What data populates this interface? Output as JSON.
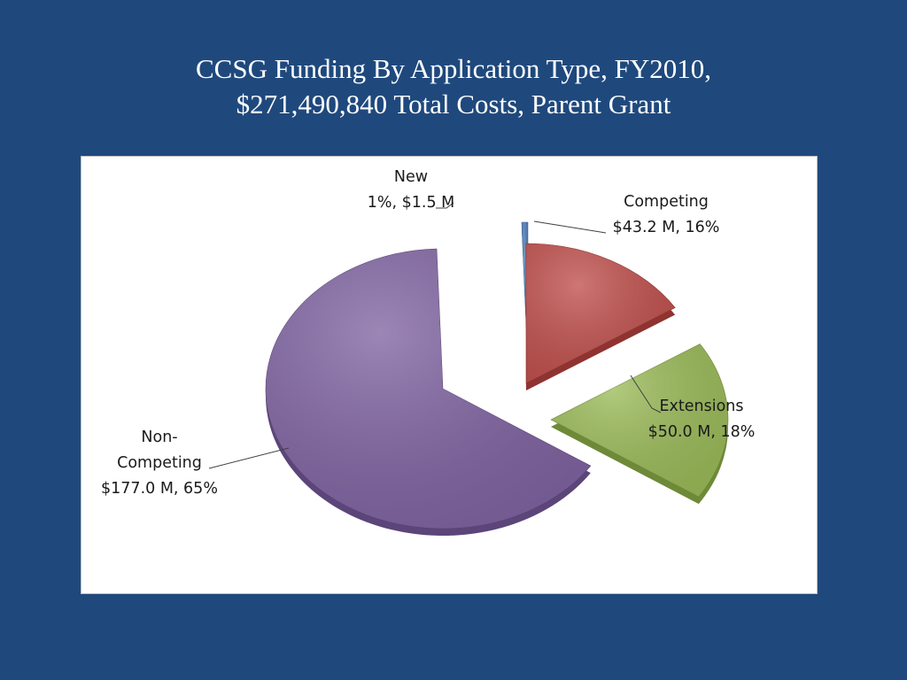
{
  "slide": {
    "title_line1": "CCSG Funding By Application Type, FY2010,",
    "title_line2": "$271,490,840 Total Costs, Parent Grant"
  },
  "chart_data": {
    "type": "pie",
    "style": "3d-exploded",
    "start_angle_deg": 92,
    "slices": [
      {
        "key": "new",
        "label_lines": [
          "New",
          "1%, $1.5 M"
        ],
        "value": 1.5,
        "percent": 1,
        "color": "#4f81bd",
        "side_color": "#3a6190"
      },
      {
        "key": "competing",
        "label_lines": [
          "Competing",
          "$43.2 M, 16%"
        ],
        "value": 43.2,
        "percent": 16,
        "color": "#c0504d",
        "side_color": "#8f3330"
      },
      {
        "key": "extensions",
        "label_lines": [
          "Extensions",
          "$50.0 M, 18%"
        ],
        "value": 50.0,
        "percent": 18,
        "color": "#9bbb59",
        "side_color": "#6e8a38"
      },
      {
        "key": "non-competing",
        "label_lines": [
          "Non-",
          "Competing",
          "$177.0 M, 65%"
        ],
        "value": 177.0,
        "percent": 65,
        "color": "#8064a2",
        "side_color": "#5b4579"
      }
    ]
  }
}
